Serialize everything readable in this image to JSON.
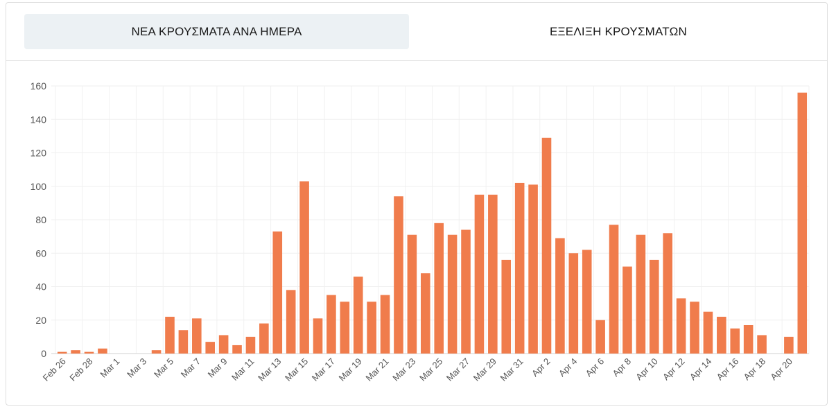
{
  "tabs": [
    {
      "label": "ΝΕΑ ΚΡΟΥΣΜΑΤΑ ΑΝΑ ΗΜΕΡΑ",
      "active": true
    },
    {
      "label": "ΕΞΕΛΙΞΗ ΚΡΟΥΣΜΑΤΩΝ",
      "active": false
    }
  ],
  "chart_data": {
    "type": "bar",
    "title": "",
    "xlabel": "",
    "ylabel": "",
    "ylim": [
      0,
      160
    ],
    "yticks": [
      0,
      20,
      40,
      60,
      80,
      100,
      120,
      140,
      160
    ],
    "grid": true,
    "bar_color": "#f07c4c",
    "categories": [
      "Feb 26",
      "Feb 27",
      "Feb 28",
      "Feb 29",
      "Mar 1",
      "Mar 2",
      "Mar 3",
      "Mar 4",
      "Mar 5",
      "Mar 6",
      "Mar 7",
      "Mar 8",
      "Mar 9",
      "Mar 10",
      "Mar 11",
      "Mar 12",
      "Mar 13",
      "Mar 14",
      "Mar 15",
      "Mar 16",
      "Mar 17",
      "Mar 18",
      "Mar 19",
      "Mar 20",
      "Mar 21",
      "Mar 22",
      "Mar 23",
      "Mar 24",
      "Mar 25",
      "Mar 26",
      "Mar 27",
      "Mar 28",
      "Mar 29",
      "Mar 30",
      "Mar 31",
      "Apr 1",
      "Apr 2",
      "Apr 3",
      "Apr 4",
      "Apr 5",
      "Apr 6",
      "Apr 7",
      "Apr 8",
      "Apr 9",
      "Apr 10",
      "Apr 11",
      "Apr 12",
      "Apr 13",
      "Apr 14",
      "Apr 15",
      "Apr 16",
      "Apr 17",
      "Apr 18",
      "Apr 19",
      "Apr 20",
      "Apr 21"
    ],
    "tick_labels": [
      "Feb 26",
      "",
      "Feb 28",
      "",
      "Mar 1",
      "",
      "Mar 3",
      "",
      "Mar 5",
      "",
      "Mar 7",
      "",
      "Mar 9",
      "",
      "Mar 11",
      "",
      "Mar 13",
      "",
      "Mar 15",
      "",
      "Mar 17",
      "",
      "Mar 19",
      "",
      "Mar 21",
      "",
      "Mar 23",
      "",
      "Mar 25",
      "",
      "Mar 27",
      "",
      "Mar 29",
      "",
      "Mar 31",
      "",
      "Apr 2",
      "",
      "Apr 4",
      "",
      "Apr 6",
      "",
      "Apr 8",
      "",
      "Apr 10",
      "",
      "Apr 12",
      "",
      "Apr 14",
      "",
      "Apr 16",
      "",
      "Apr 18",
      "",
      "Apr 20",
      ""
    ],
    "values": [
      1,
      2,
      1,
      3,
      0,
      0,
      0,
      2,
      22,
      14,
      21,
      7,
      11,
      5,
      10,
      18,
      73,
      38,
      103,
      21,
      35,
      31,
      46,
      31,
      35,
      94,
      71,
      48,
      78,
      71,
      74,
      95,
      95,
      56,
      102,
      101,
      129,
      69,
      60,
      62,
      20,
      77,
      52,
      71,
      56,
      72,
      33,
      31,
      25,
      22,
      15,
      17,
      11,
      0,
      10,
      156
    ]
  }
}
